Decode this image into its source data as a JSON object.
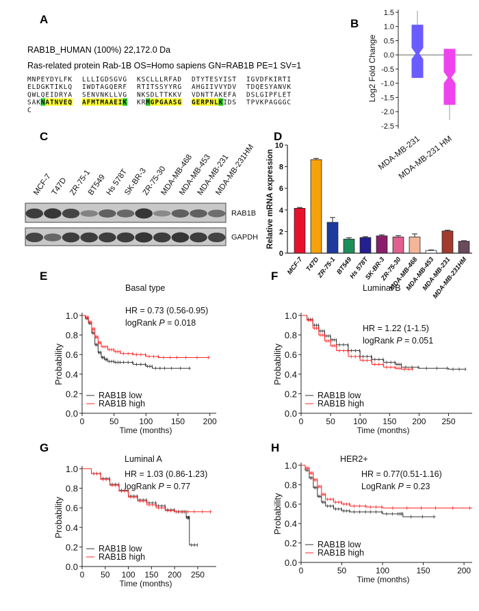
{
  "panels": {
    "A": {
      "letter": "A",
      "header1": "RAB1B_HUMAN (100%) 22,172.0 Da",
      "header2": "Ras-related protein Rab-1B OS=Homo sapiens GN=RAB1B PE=1 SV=1",
      "sequence_lines": [
        [
          {
            "t": "MNPEYDYLFK"
          },
          {
            "t": "LLLIGDSGVG"
          },
          {
            "t": "KSCLLLRFAD"
          },
          {
            "t": "DTYTESYIST"
          },
          {
            "t": "IGVDFKIRTI"
          }
        ],
        [
          {
            "t": "ELDGKTIKLQ"
          },
          {
            "t": "IWDTAGQERF"
          },
          {
            "t": "RTITSSYYRG"
          },
          {
            "t": "AHGIIVVYDV"
          },
          {
            "t": "TDQESYANVK"
          }
        ],
        [
          {
            "t": "QWLQEIDRYA"
          },
          {
            "t": "SENVNKLLVG"
          },
          {
            "t": "NKSDLTTKKV"
          },
          {
            "t": "VDNTTAKEFA"
          },
          {
            "t": "DSLGIPFLET"
          }
        ],
        [
          {
            "t": "SAKNATNVEQ",
            "hl": [
              3,
              10
            ]
          },
          {
            "t": "AFMTMAAEIK",
            "hl": [
              0,
              10
            ]
          },
          {
            "t": "KRMGPGAASG",
            "hl": [
              2,
              10
            ]
          },
          {
            "t": "GERPNLKIDS",
            "hl": [
              0,
              7
            ]
          },
          {
            "t": "TPVKPAGGGC"
          }
        ],
        [
          {
            "t": "C"
          }
        ]
      ],
      "green_positions": [
        [
          3,
          0,
          3
        ],
        [
          3,
          1,
          9
        ],
        [
          3,
          2,
          2
        ],
        [
          3,
          3,
          6
        ]
      ],
      "highlight_color": "#ffff33",
      "green_color": "#33cc33"
    },
    "B": {
      "letter": "B",
      "ylabel": "Log2  Fold Change",
      "xtick_labels": [
        "MDA-MB-231",
        "MDA-MB-231 HM"
      ]
    },
    "C": {
      "letter": "C",
      "lanes": [
        "MCF-7",
        "T47D",
        "ZR-75-1",
        "BT549",
        "Hs 578T",
        "SK-BR-3",
        "ZR-75-30",
        "MDA-MB-468",
        "MDA-MB-453",
        "MDA-MB-231",
        "MDA-MB-231HM"
      ],
      "blot_labels": [
        "RAB1B",
        "GAPDH"
      ],
      "band_intensity": {
        "RAB1B": [
          0.85,
          0.9,
          0.8,
          0.35,
          0.6,
          0.55,
          0.9,
          0.3,
          0.6,
          0.6,
          0.5
        ],
        "GAPDH": [
          0.8,
          0.55,
          0.85,
          0.85,
          0.85,
          0.85,
          0.9,
          0.85,
          0.9,
          0.85,
          0.8
        ]
      }
    },
    "D": {
      "letter": "D"
    },
    "E": {
      "letter": "E"
    },
    "F": {
      "letter": "F"
    },
    "G": {
      "letter": "G"
    },
    "H": {
      "letter": "H"
    }
  },
  "chart_data": [
    {
      "id": "B",
      "type": "box",
      "ylabel": "Log2  Fold Change",
      "ylim": [
        -2.6,
        1.5
      ],
      "yticks": [
        1.5,
        1.0,
        0.5,
        0.0,
        -0.5,
        -1.0,
        -1.5,
        -2.0,
        -2.5
      ],
      "ytick_labels": [
        "1.5",
        "1.0",
        "0.5",
        "0.0",
        "-0.5",
        "-1.0",
        "-1.5",
        "-2.0",
        "-2.5"
      ],
      "reference_line": 0,
      "categories": [
        "MDA-MB-231",
        "MDA-MB-231 HM"
      ],
      "boxes": [
        {
          "name": "MDA-MB-231",
          "whisker_low": -0.8,
          "q1": -0.8,
          "median": 0.05,
          "q3": 1.05,
          "whisker_high": 1.55,
          "color": "#6b5cff"
        },
        {
          "name": "MDA-MB-231 HM",
          "whisker_low": -2.3,
          "q1": -1.75,
          "median": -0.8,
          "q3": 0.2,
          "whisker_high": 0.2,
          "color": "#ee44ee"
        }
      ]
    },
    {
      "id": "D",
      "type": "bar",
      "ylabel": "Relative mRNA expression",
      "ylim": [
        0,
        10
      ],
      "yticks": [
        0,
        2,
        4,
        6,
        8,
        10
      ],
      "ytick_labels": [
        "0",
        "2",
        "4",
        "6",
        "8",
        "10"
      ],
      "categories": [
        "MCF-7",
        "T47D",
        "ZR-75-1",
        "BT549",
        "Hs 578T",
        "SK-BR-3",
        "ZR-75-30",
        "MDA-MB-468",
        "MDA-MB-453",
        "MDA-MB-231",
        "MDA-MB-231HM"
      ],
      "values": [
        4.15,
        8.65,
        2.85,
        1.3,
        1.45,
        1.6,
        1.5,
        1.5,
        0.25,
        2.05,
        1.1
      ],
      "errors": [
        0.08,
        0.12,
        0.45,
        0.12,
        0.08,
        0.1,
        0.12,
        0.28,
        0.05,
        0.08,
        0.05
      ],
      "colors": [
        "#e8112d",
        "#f5a20b",
        "#1e3a9e",
        "#1a8f5a",
        "#252090",
        "#8a1e6a",
        "#e0608e",
        "#f4b69a",
        "#ffffff",
        "#a33a2e",
        "#6b4a5e"
      ]
    },
    {
      "id": "E",
      "type": "line",
      "annotation_title": "Basal type",
      "hr_text": "HR = 0.73 (0.56-0.95)",
      "logrank_prefix": "logRank ",
      "logrank_p": "P",
      "logrank_value": " = 0.018",
      "xlabel": "Time (months)",
      "ylabel": "Probability",
      "xlim": [
        0,
        210
      ],
      "ylim": [
        0,
        1.0
      ],
      "xticks": [
        0,
        50,
        100,
        150,
        200
      ],
      "xtick_labels": [
        "0",
        "50",
        "100",
        "150",
        "200"
      ],
      "yticks": [
        0,
        0.2,
        0.4,
        0.6,
        0.8,
        1.0
      ],
      "ytick_labels": [
        "0.0",
        "0.2",
        "0.4",
        "0.6",
        "0.8",
        "1.0"
      ],
      "series": [
        {
          "name": "RAB1B low",
          "color": "#333333",
          "x": [
            0,
            5,
            10,
            15,
            20,
            25,
            30,
            35,
            40,
            50,
            60,
            80,
            100,
            110,
            130,
            170
          ],
          "y": [
            1.0,
            0.97,
            0.92,
            0.82,
            0.7,
            0.62,
            0.57,
            0.55,
            0.53,
            0.52,
            0.52,
            0.5,
            0.48,
            0.46,
            0.46,
            0.46
          ]
        },
        {
          "name": "RAB1B high",
          "color": "#ff2222",
          "x": [
            0,
            5,
            10,
            15,
            20,
            25,
            30,
            40,
            50,
            60,
            80,
            100,
            120,
            150,
            200
          ],
          "y": [
            1.0,
            0.98,
            0.93,
            0.86,
            0.78,
            0.72,
            0.68,
            0.65,
            0.63,
            0.61,
            0.6,
            0.58,
            0.57,
            0.57,
            0.57
          ]
        }
      ]
    },
    {
      "id": "F",
      "type": "line",
      "annotation_title": "Luminal B",
      "hr_text": "HR = 1.22 (1-1.5)",
      "logrank_prefix": "logRank ",
      "logrank_p": "P",
      "logrank_value": " = 0.051",
      "xlabel": "Time (months)",
      "ylabel": "Probability",
      "xlim": [
        0,
        290
      ],
      "ylim": [
        0,
        1.0
      ],
      "xticks": [
        0,
        50,
        100,
        150,
        200,
        250
      ],
      "xtick_labels": [
        "0",
        "50",
        "100",
        "150",
        "200",
        "250"
      ],
      "yticks": [
        0,
        0.2,
        0.4,
        0.6,
        0.8,
        1.0
      ],
      "ytick_labels": [
        "0.0",
        "0.2",
        "0.4",
        "0.6",
        "0.8",
        "1.0"
      ],
      "series": [
        {
          "name": "RAB1B low",
          "color": "#333333",
          "x": [
            0,
            10,
            20,
            30,
            40,
            50,
            60,
            80,
            100,
            120,
            140,
            160,
            170,
            200,
            250,
            280
          ],
          "y": [
            1.0,
            0.96,
            0.9,
            0.84,
            0.79,
            0.75,
            0.7,
            0.64,
            0.58,
            0.55,
            0.52,
            0.5,
            0.47,
            0.46,
            0.45,
            0.45
          ]
        },
        {
          "name": "RAB1B high",
          "color": "#ff2222",
          "x": [
            0,
            10,
            20,
            30,
            40,
            50,
            60,
            80,
            100,
            120,
            140,
            160,
            170,
            190
          ],
          "y": [
            1.0,
            0.95,
            0.87,
            0.8,
            0.74,
            0.69,
            0.64,
            0.58,
            0.54,
            0.5,
            0.47,
            0.46,
            0.45,
            0.45
          ]
        }
      ]
    },
    {
      "id": "G",
      "type": "line",
      "annotation_title": "Luminal A",
      "hr_text": "HR = 1.03 (0.86-1.23)",
      "logrank_prefix": "logRank ",
      "logrank_p": "P",
      "logrank_value": " = 0.77",
      "xlabel": "Time (months)",
      "ylabel": "Probability",
      "xlim": [
        0,
        290
      ],
      "ylim": [
        0,
        1.0
      ],
      "xticks": [
        0,
        50,
        100,
        150,
        200,
        250
      ],
      "xtick_labels": [
        "0",
        "50",
        "100",
        "150",
        "200",
        "250"
      ],
      "yticks": [
        0,
        0.2,
        0.4,
        0.6,
        0.8,
        1.0
      ],
      "ytick_labels": [
        "0.0",
        "0.2",
        "0.4",
        "0.6",
        "0.8",
        "1.0"
      ],
      "series": [
        {
          "name": "RAB1B low",
          "color": "#333333",
          "x": [
            0,
            20,
            40,
            60,
            80,
            100,
            120,
            140,
            160,
            180,
            200,
            215,
            225,
            230,
            232,
            250
          ],
          "y": [
            1.0,
            0.95,
            0.9,
            0.84,
            0.78,
            0.72,
            0.68,
            0.65,
            0.62,
            0.58,
            0.56,
            0.56,
            0.5,
            0.5,
            0.22,
            0.22
          ]
        },
        {
          "name": "RAB1B high",
          "color": "#ff2222",
          "x": [
            0,
            20,
            40,
            60,
            80,
            100,
            120,
            140,
            160,
            180,
            200,
            230,
            280
          ],
          "y": [
            1.0,
            0.95,
            0.89,
            0.83,
            0.77,
            0.71,
            0.67,
            0.63,
            0.6,
            0.57,
            0.56,
            0.56,
            0.56
          ]
        }
      ]
    },
    {
      "id": "H",
      "type": "line",
      "annotation_title": "HER2+",
      "hr_text": "HR = 0.77(0.51-1.16)",
      "logrank_prefix": "LogRank ",
      "logrank_p": "P",
      "logrank_value": " = 0.23",
      "xlabel": "Time (months)",
      "ylabel": "Probability",
      "xlim": [
        0,
        210
      ],
      "ylim": [
        0,
        1.0
      ],
      "xticks": [
        0,
        50,
        100,
        150,
        200
      ],
      "xtick_labels": [
        "0",
        "50",
        "100",
        "150",
        "200"
      ],
      "yticks": [
        0,
        0.2,
        0.4,
        0.6,
        0.8,
        1.0
      ],
      "ytick_labels": [
        "0.0",
        "0.2",
        "0.4",
        "0.6",
        "0.8",
        "1.0"
      ],
      "series": [
        {
          "name": "RAB1B low",
          "color": "#333333",
          "x": [
            0,
            5,
            10,
            15,
            20,
            25,
            30,
            40,
            50,
            60,
            80,
            100,
            120,
            125,
            165
          ],
          "y": [
            1.0,
            0.95,
            0.87,
            0.77,
            0.68,
            0.62,
            0.58,
            0.55,
            0.53,
            0.52,
            0.52,
            0.5,
            0.5,
            0.47,
            0.47
          ]
        },
        {
          "name": "RAB1B high",
          "color": "#ff2222",
          "x": [
            0,
            5,
            10,
            15,
            20,
            25,
            30,
            40,
            50,
            60,
            80,
            100,
            150,
            210
          ],
          "y": [
            1.0,
            0.97,
            0.92,
            0.85,
            0.78,
            0.7,
            0.65,
            0.62,
            0.6,
            0.58,
            0.57,
            0.56,
            0.56,
            0.56
          ]
        }
      ]
    }
  ]
}
